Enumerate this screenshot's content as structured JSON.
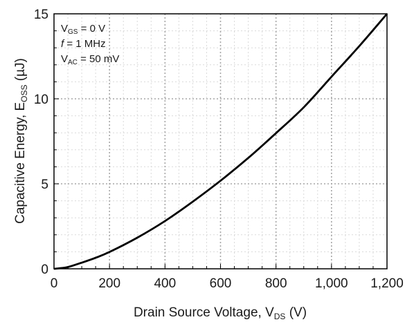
{
  "chart_data": {
    "type": "line",
    "xlabel": {
      "main": "Drain Source Voltage, V",
      "sub": "DS",
      "tail": " (V)"
    },
    "ylabel": {
      "main": "Capacitive Energy, E",
      "sub": "OSS",
      "tail": " (µJ)"
    },
    "xlim": [
      0,
      1200
    ],
    "ylim": [
      0,
      15
    ],
    "x_ticks": [
      {
        "value": 0,
        "label": "0"
      },
      {
        "value": 200,
        "label": "200"
      },
      {
        "value": 400,
        "label": "400"
      },
      {
        "value": 600,
        "label": "600"
      },
      {
        "value": 800,
        "label": "800"
      },
      {
        "value": 1000,
        "label": "1,000"
      },
      {
        "value": 1200,
        "label": "1,200"
      }
    ],
    "y_ticks": [
      {
        "value": 0,
        "label": "0"
      },
      {
        "value": 5,
        "label": "5"
      },
      {
        "value": 10,
        "label": "10"
      },
      {
        "value": 15,
        "label": "15"
      }
    ],
    "x_minor_step": 50,
    "y_minor_step": 1,
    "grid": true,
    "conditions": [
      {
        "main": "V",
        "sub": "GS",
        "tail": " = 0 V",
        "italic": false
      },
      {
        "main": "f",
        "sub": "",
        "tail": " = 1 MHz",
        "italic": true
      },
      {
        "main": "V",
        "sub": "AC",
        "tail": " = 50 mV",
        "italic": false
      }
    ],
    "series": [
      {
        "color": "#000000",
        "x": [
          0,
          25,
          50,
          100,
          150,
          200,
          300,
          400,
          500,
          600,
          700,
          800,
          900,
          1000,
          1100,
          1200
        ],
        "y": [
          0,
          0.04,
          0.1,
          0.36,
          0.65,
          0.99,
          1.83,
          2.81,
          3.95,
          5.18,
          6.52,
          7.98,
          9.5,
          11.3,
          13.1,
          15.0
        ]
      }
    ]
  }
}
